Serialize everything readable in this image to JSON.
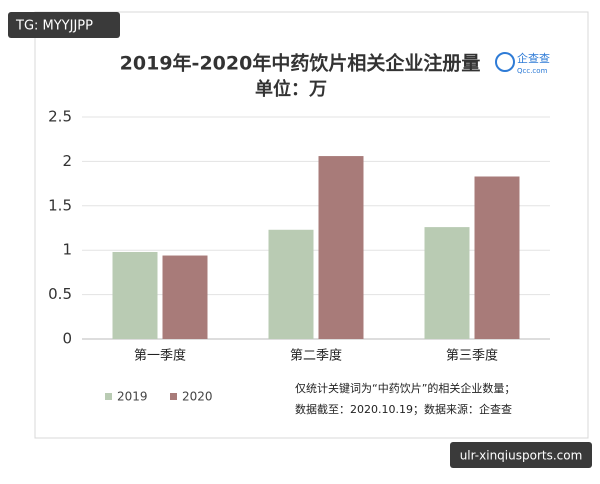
{
  "watermark": "TG: MYYJJPP",
  "url_label": "ulr-xinqiusports.com",
  "logo": {
    "name": "企查查",
    "domain": "Qcc.com"
  },
  "chart_data": {
    "type": "bar",
    "title": "2019年-2020年中药饮片相关企业注册量",
    "subtitle": "单位：万",
    "categories": [
      "第一季度",
      "第二季度",
      "第三季度"
    ],
    "series": [
      {
        "name": "2019",
        "color": "#b9cbb3",
        "values": [
          0.98,
          1.23,
          1.26
        ]
      },
      {
        "name": "2020",
        "color": "#a87b79",
        "values": [
          0.94,
          2.06,
          1.83
        ]
      }
    ],
    "ylim": [
      0,
      2.5
    ],
    "yticks": [
      0,
      0.5,
      1,
      1.5,
      2,
      2.5
    ],
    "grid": true,
    "legend": "bottom-left",
    "note": [
      "仅统计关键词为“中药饮片”的相关企业数量；",
      "数据截至：2020.10.19；数据来源：企查查"
    ]
  }
}
